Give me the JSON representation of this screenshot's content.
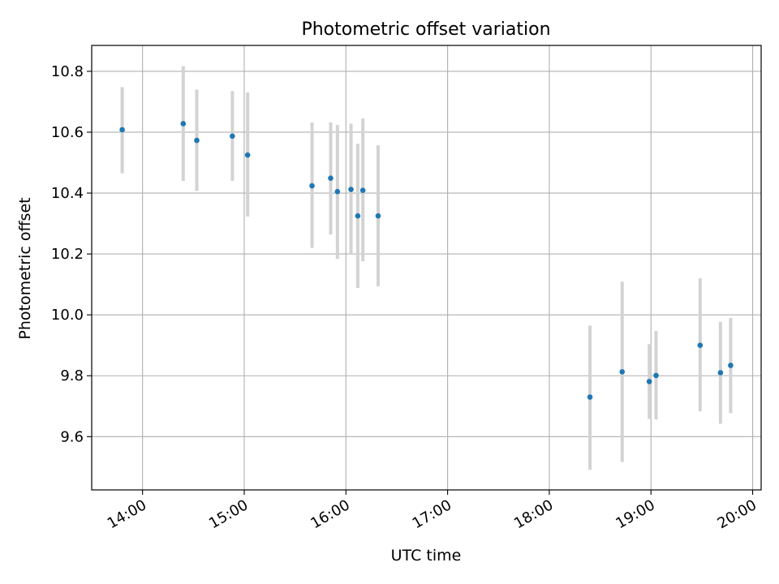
{
  "chart_data": {
    "type": "scatter",
    "title": "Photometric offset variation",
    "xlabel": "UTC time",
    "ylabel": "Photometric offset",
    "x_is_time": true,
    "xlim": [
      "13:30",
      "20:05"
    ],
    "ylim": [
      9.425,
      10.885
    ],
    "x_ticks": [
      "14:00",
      "15:00",
      "16:00",
      "17:00",
      "18:00",
      "19:00",
      "20:00"
    ],
    "y_ticks": [
      9.6,
      9.8,
      10.0,
      10.2,
      10.4,
      10.6,
      10.8
    ],
    "y_tick_labels": [
      "9.6",
      "9.8",
      "10.0",
      "10.2",
      "10.4",
      "10.6",
      "10.8"
    ],
    "grid": true,
    "point_color": "#1f77b4",
    "errorbar_color": "#d3d3d3",
    "series": [
      {
        "points": [
          {
            "x": "13:48",
            "y": 10.608,
            "err_low": 10.465,
            "err_high": 10.748
          },
          {
            "x": "14:24",
            "y": 10.628,
            "err_low": 10.44,
            "err_high": 10.817
          },
          {
            "x": "14:32",
            "y": 10.573,
            "err_low": 10.407,
            "err_high": 10.74
          },
          {
            "x": "14:53",
            "y": 10.587,
            "err_low": 10.44,
            "err_high": 10.735
          },
          {
            "x": "15:02",
            "y": 10.525,
            "err_low": 10.323,
            "err_high": 10.73
          },
          {
            "x": "15:40",
            "y": 10.424,
            "err_low": 10.22,
            "err_high": 10.632
          },
          {
            "x": "15:51",
            "y": 10.449,
            "err_low": 10.264,
            "err_high": 10.632
          },
          {
            "x": "15:55",
            "y": 10.405,
            "err_low": 10.184,
            "err_high": 10.624
          },
          {
            "x": "16:03",
            "y": 10.412,
            "err_low": 10.2,
            "err_high": 10.628
          },
          {
            "x": "16:07",
            "y": 10.325,
            "err_low": 10.088,
            "err_high": 10.562
          },
          {
            "x": "16:10",
            "y": 10.409,
            "err_low": 10.176,
            "err_high": 10.645
          },
          {
            "x": "16:19",
            "y": 10.325,
            "err_low": 10.094,
            "err_high": 10.557
          },
          {
            "x": "18:24",
            "y": 9.73,
            "err_low": 9.491,
            "err_high": 9.965
          },
          {
            "x": "18:43",
            "y": 9.813,
            "err_low": 9.517,
            "err_high": 10.109
          },
          {
            "x": "18:59",
            "y": 9.781,
            "err_low": 9.658,
            "err_high": 9.904
          },
          {
            "x": "19:03",
            "y": 9.801,
            "err_low": 9.656,
            "err_high": 9.947
          },
          {
            "x": "19:29",
            "y": 9.9,
            "err_low": 9.683,
            "err_high": 10.12
          },
          {
            "x": "19:41",
            "y": 9.81,
            "err_low": 9.642,
            "err_high": 9.977
          },
          {
            "x": "19:47",
            "y": 9.834,
            "err_low": 9.677,
            "err_high": 9.99
          }
        ]
      }
    ]
  }
}
